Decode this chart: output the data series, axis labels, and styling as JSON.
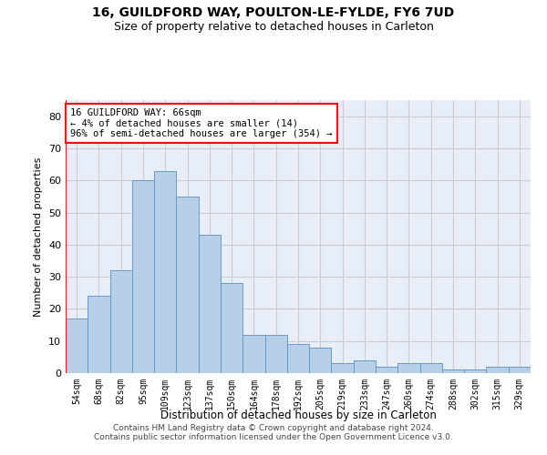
{
  "title1": "16, GUILDFORD WAY, POULTON-LE-FYLDE, FY6 7UD",
  "title2": "Size of property relative to detached houses in Carleton",
  "xlabel": "Distribution of detached houses by size in Carleton",
  "ylabel": "Number of detached properties",
  "categories": [
    "54sqm",
    "68sqm",
    "82sqm",
    "95sqm",
    "109sqm",
    "123sqm",
    "137sqm",
    "150sqm",
    "164sqm",
    "178sqm",
    "192sqm",
    "205sqm",
    "219sqm",
    "233sqm",
    "247sqm",
    "260sqm",
    "274sqm",
    "288sqm",
    "302sqm",
    "315sqm",
    "329sqm"
  ],
  "values": [
    17,
    24,
    32,
    60,
    63,
    55,
    43,
    28,
    12,
    12,
    9,
    8,
    3,
    4,
    2,
    3,
    3,
    1,
    1,
    2,
    2
  ],
  "bar_color": "#b8cfe8",
  "bar_edge_color": "#6699cc",
  "annotation_text": "16 GUILDFORD WAY: 66sqm\n← 4% of detached houses are smaller (14)\n96% of semi-detached houses are larger (354) →",
  "annotation_box_color": "white",
  "annotation_box_edge_color": "red",
  "vline_color": "red",
  "ylim": [
    0,
    85
  ],
  "yticks": [
    0,
    10,
    20,
    30,
    40,
    50,
    60,
    70,
    80
  ],
  "grid_color": "#cccccc",
  "background_color": "#e8eef8",
  "footer1": "Contains HM Land Registry data © Crown copyright and database right 2024.",
  "footer2": "Contains public sector information licensed under the Open Government Licence v3.0.",
  "title1_fontsize": 10,
  "title2_fontsize": 9,
  "vline_color2": "red"
}
